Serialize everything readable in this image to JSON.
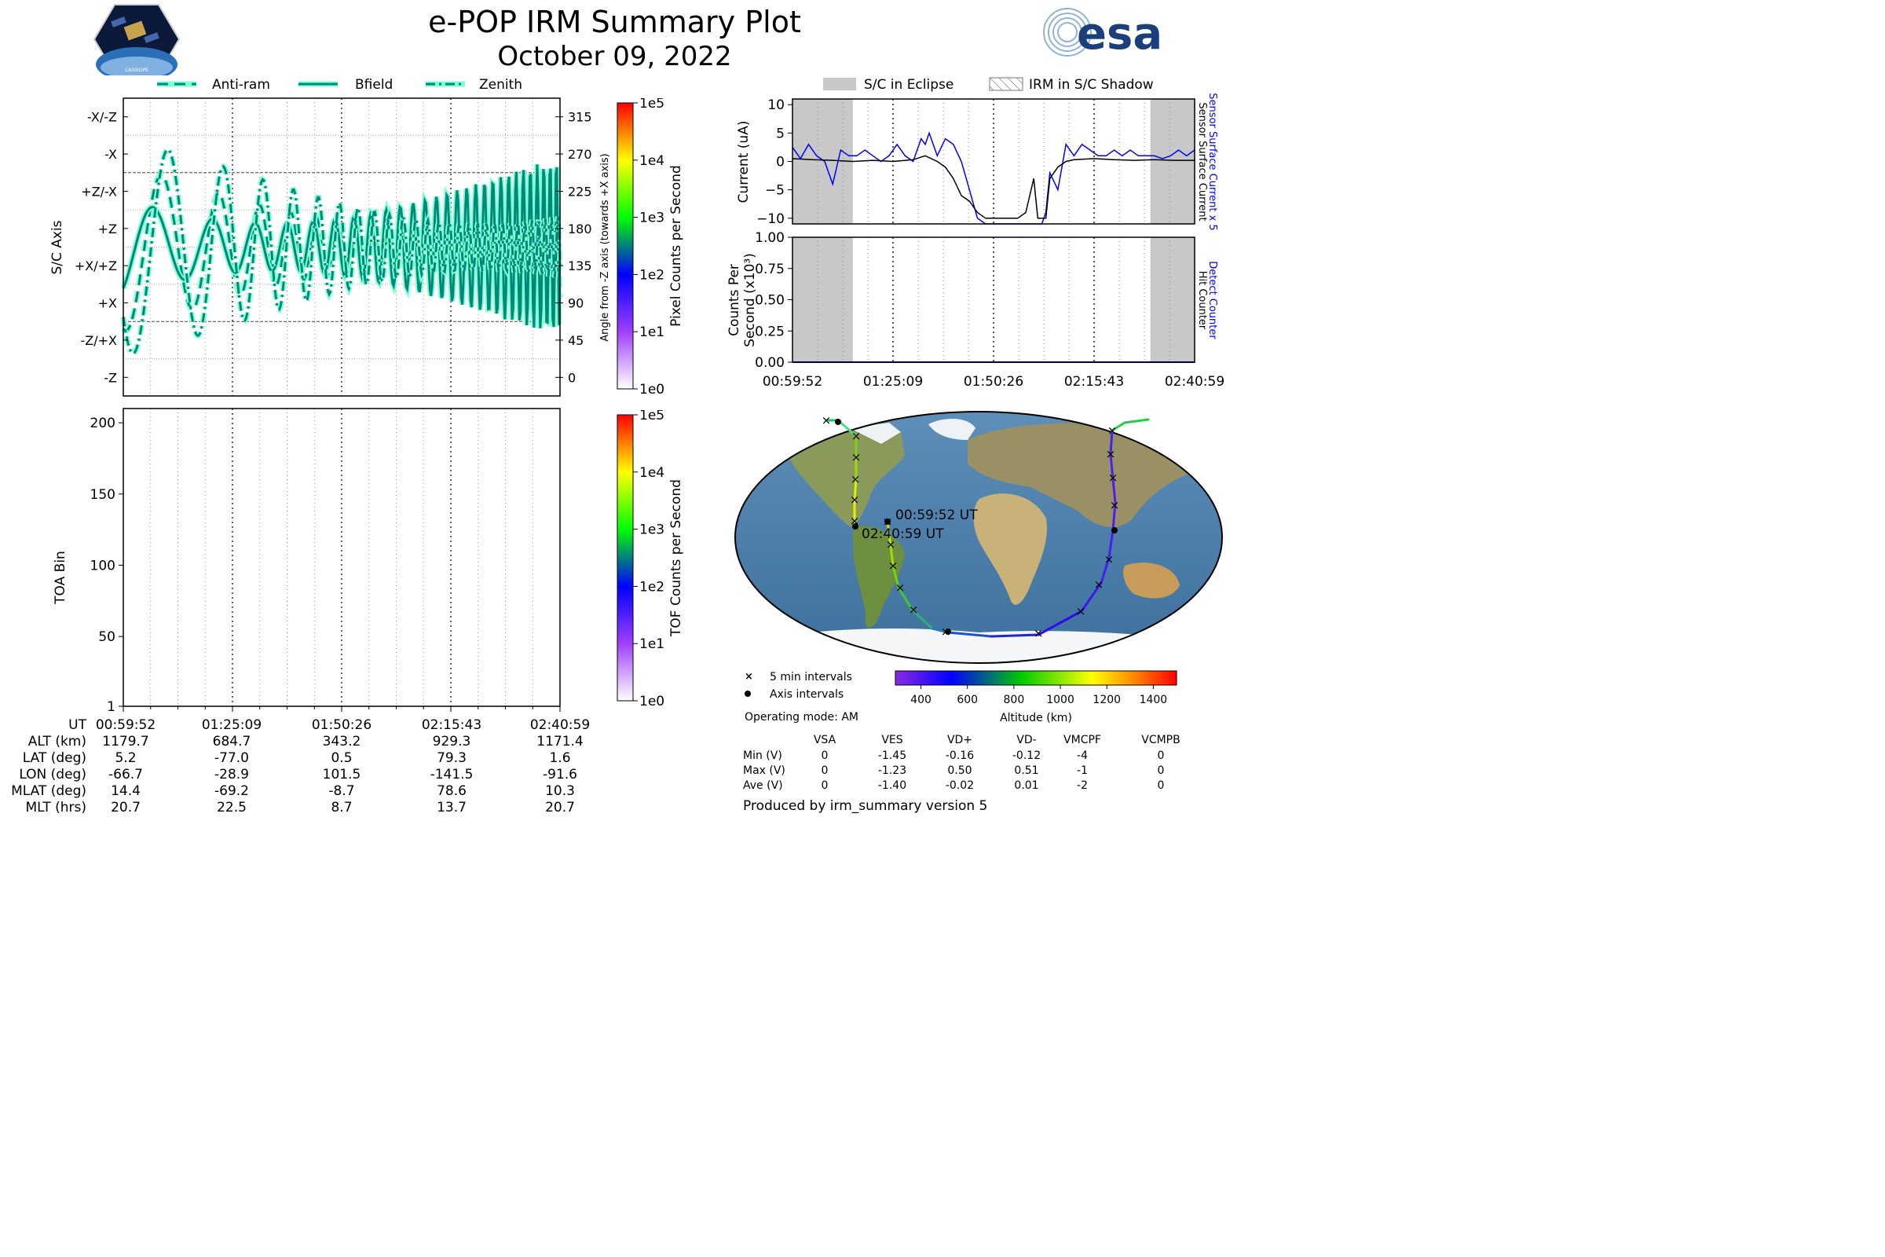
{
  "header": {
    "title": "e-POP IRM Summary Plot",
    "subtitle": "October 09, 2022",
    "logo_left_text": "CASSIOPE",
    "logo_right_text": "esa"
  },
  "colors": {
    "trace": "#00897b",
    "halo": "#7fffd4",
    "sensor": "#0000ff",
    "eclipse": "#c8c8c8"
  },
  "time_ticks": [
    "00:59:52",
    "01:25:09",
    "01:50:26",
    "02:15:43",
    "02:40:59"
  ],
  "panels": {
    "angle": {
      "legend": [
        "Anti-ram",
        "Bfield",
        "Zenith"
      ],
      "ylabel": "S/C Axis",
      "ylabel_right": "Angle from -Z axis (towards +X axis)",
      "axis_labels": [
        "-X/-Z",
        "-X",
        "+Z/-X",
        "+Z",
        "+X/+Z",
        "+X",
        "-Z/+X",
        "-Z"
      ],
      "right_ticks": [
        "315",
        "270",
        "225",
        "180",
        "135",
        "90",
        "45",
        "0"
      ],
      "colorbar_label": "Pixel Counts per Second",
      "colorbar_ticks": [
        "1e5",
        "1e4",
        "1e3",
        "1e2",
        "1e1",
        "1e0"
      ]
    },
    "toa": {
      "ylabel": "TOA Bin",
      "yticks": [
        "200",
        "150",
        "100",
        "50",
        "1"
      ],
      "colorbar_label": "TOF Counts per Second",
      "colorbar_ticks": [
        "1e5",
        "1e4",
        "1e3",
        "1e2",
        "1e1",
        "1e0"
      ]
    },
    "current": {
      "legend": [
        "S/C in Eclipse",
        "IRM in S/C Shadow"
      ],
      "ylabel": "Current (uA)",
      "yticks": [
        "10",
        "5",
        "0",
        "−5",
        "−10"
      ],
      "right_label_blue": "Sensor Surface Current x 5",
      "right_label_black": "Sensor Surface Current"
    },
    "counts": {
      "ylabel_1": "Counts Per",
      "ylabel_2": "Second (x10³)",
      "yticks": [
        "1.00",
        "0.75",
        "0.50",
        "0.25",
        "0.00"
      ],
      "right_label_blue": "Detect Counter",
      "right_label_black": "Hit Counter"
    }
  },
  "orbit_table": {
    "rows": [
      {
        "label": "UT",
        "values": [
          "00:59:52",
          "01:25:09",
          "01:50:26",
          "02:15:43",
          "02:40:59"
        ]
      },
      {
        "label": "ALT (km)",
        "values": [
          "1179.7",
          "684.7",
          "343.2",
          "929.3",
          "1171.4"
        ]
      },
      {
        "label": "LAT (deg)",
        "values": [
          "5.2",
          "-77.0",
          "0.5",
          "79.3",
          "1.6"
        ]
      },
      {
        "label": "LON (deg)",
        "values": [
          "-66.7",
          "-28.9",
          "101.5",
          "-141.5",
          "-91.6"
        ]
      },
      {
        "label": "MLAT (deg)",
        "values": [
          "14.4",
          "-69.2",
          "-8.7",
          "78.6",
          "10.3"
        ]
      },
      {
        "label": "MLT (hrs)",
        "values": [
          "20.7",
          "22.5",
          "8.7",
          "13.7",
          "20.7"
        ]
      }
    ]
  },
  "map": {
    "start_label": "00:59:52 UT",
    "end_label": "02:40:59 UT",
    "legend_5min": "5 min intervals",
    "legend_axis": "Axis intervals",
    "colorbar_label": "Altitude (km)",
    "colorbar_ticks": [
      "400",
      "600",
      "800",
      "1000",
      "1200",
      "1400"
    ]
  },
  "voltage_table": {
    "mode": "Operating mode: AM",
    "columns": [
      "VSA",
      "VES",
      "VD+",
      "VD-",
      "VMCPF",
      "VCMPB"
    ],
    "rows": [
      {
        "label": "Min (V)",
        "values": [
          "0",
          "-1.45",
          "-0.16",
          "-0.12",
          "-4",
          "0"
        ]
      },
      {
        "label": "Max (V)",
        "values": [
          "0",
          "-1.23",
          "0.50",
          "0.51",
          "-1",
          "0"
        ]
      },
      {
        "label": "Ave (V)",
        "values": [
          "0",
          "-1.40",
          "-0.02",
          "0.01",
          "-2",
          "0"
        ]
      }
    ]
  },
  "footer": "Produced by irm_summary version 5",
  "chart_data": [
    {
      "type": "line",
      "name": "angle_panel",
      "ylim": [
        -22.5,
        337.5
      ],
      "series": [
        {
          "name": "Anti-ram",
          "style": "dashed"
        },
        {
          "name": "Bfield",
          "style": "solid"
        },
        {
          "name": "Zenith",
          "style": "dashdot"
        }
      ]
    },
    {
      "type": "heatmap",
      "name": "toa_panel",
      "ylim": [
        1,
        210
      ],
      "values": []
    },
    {
      "type": "line",
      "name": "current_panel",
      "ylim": [
        -11,
        11
      ],
      "series": [
        {
          "name": "Sensor Surface Current x 5",
          "color": "#0000ff",
          "x_frac": [
            0.0,
            0.02,
            0.04,
            0.06,
            0.08,
            0.1,
            0.12,
            0.14,
            0.16,
            0.18,
            0.2,
            0.22,
            0.24,
            0.26,
            0.28,
            0.3,
            0.31,
            0.32,
            0.33,
            0.34,
            0.36,
            0.38,
            0.4,
            0.42,
            0.44,
            0.46,
            0.48,
            0.5,
            0.52,
            0.54,
            0.56,
            0.58,
            0.6,
            0.62,
            0.63,
            0.64,
            0.66,
            0.68,
            0.7,
            0.72,
            0.74,
            0.76,
            0.78,
            0.8,
            0.82,
            0.84,
            0.86,
            0.88,
            0.9,
            0.92,
            0.94,
            0.96,
            0.98,
            1.0
          ],
          "y": [
            2.5,
            0.5,
            3,
            1,
            0,
            -4,
            2,
            1,
            1,
            2,
            1,
            0,
            1,
            3,
            1,
            0,
            2,
            4,
            3,
            5,
            1,
            4,
            3,
            0,
            -5,
            -10,
            -11,
            -11,
            -11,
            -11,
            -11,
            -11,
            -11,
            -11,
            -9,
            -2,
            -5,
            3,
            1,
            3,
            2,
            1,
            1,
            2,
            1,
            2,
            1,
            1,
            1,
            0.5,
            1,
            2,
            1,
            2
          ]
        },
        {
          "name": "Sensor Surface Current",
          "color": "#000000",
          "x_frac": [
            0.0,
            0.05,
            0.1,
            0.15,
            0.2,
            0.25,
            0.3,
            0.33,
            0.36,
            0.38,
            0.4,
            0.42,
            0.44,
            0.46,
            0.48,
            0.5,
            0.52,
            0.54,
            0.56,
            0.58,
            0.6,
            0.61,
            0.62,
            0.63,
            0.64,
            0.66,
            0.68,
            0.7,
            0.75,
            0.8,
            0.85,
            0.9,
            0.95,
            1.0
          ],
          "y": [
            0.5,
            0.3,
            0.2,
            0,
            0.2,
            0,
            0.3,
            1,
            0,
            -1,
            -3,
            -6,
            -7,
            -9,
            -10,
            -10,
            -10,
            -10,
            -10,
            -9,
            -3,
            -10,
            -10,
            -10,
            -3,
            -1,
            0,
            0.3,
            0.5,
            0.3,
            0.2,
            0.3,
            0.2,
            0.2
          ]
        }
      ]
    },
    {
      "type": "line",
      "name": "counts_panel",
      "ylim": [
        0,
        1.0
      ],
      "series": [
        {
          "name": "Detect Counter",
          "color": "#0000ff",
          "y": [
            0,
            0
          ]
        },
        {
          "name": "Hit Counter",
          "color": "#000000",
          "y": [
            0,
            0
          ]
        }
      ]
    }
  ]
}
